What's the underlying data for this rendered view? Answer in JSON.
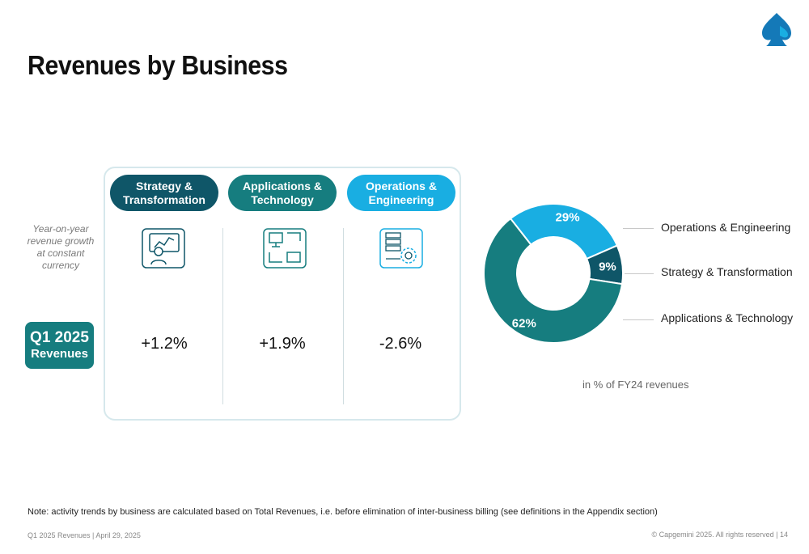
{
  "page": {
    "title": "Revenues by Business",
    "caption": "in % of FY24 revenues",
    "note": "Note: activity trends by business are calculated based on Total Revenues, i.e. before elimination of inter-business billing (see definitions in the Appendix section)",
    "footer_left": "Q1 2025 Revenues  |  April 29, 2025",
    "footer_right": "© Capgemini 2025. All rights reserved  |   14"
  },
  "table": {
    "row_label": "Year-on-year revenue growth at constant currency",
    "period_badge": {
      "line1": "Q1 2025",
      "line2": "Revenues"
    },
    "columns": [
      {
        "name": "Strategy &\nTransformation",
        "growth": "+1.2%",
        "color": "#0f5668",
        "icon": "strategy-icon"
      },
      {
        "name": "Applications &\nTechnology",
        "growth": "+1.9%",
        "color": "#167d7f",
        "icon": "applications-icon"
      },
      {
        "name": "Operations &\nEngineering",
        "growth": "-2.6%",
        "color": "#19aee2",
        "icon": "operations-icon"
      }
    ]
  },
  "chart_data": {
    "type": "pie",
    "donut": true,
    "title": "",
    "unit": "%",
    "slices": [
      {
        "label": "Operations & Engineering",
        "value": 29,
        "display": "29%",
        "color": "#19aee2"
      },
      {
        "label": "Strategy & Transformation",
        "value": 9,
        "display": "9%",
        "color": "#0f5668"
      },
      {
        "label": "Applications & Technology",
        "value": 62,
        "display": "62%",
        "color": "#167d7f"
      }
    ],
    "legend_placement": "right"
  }
}
